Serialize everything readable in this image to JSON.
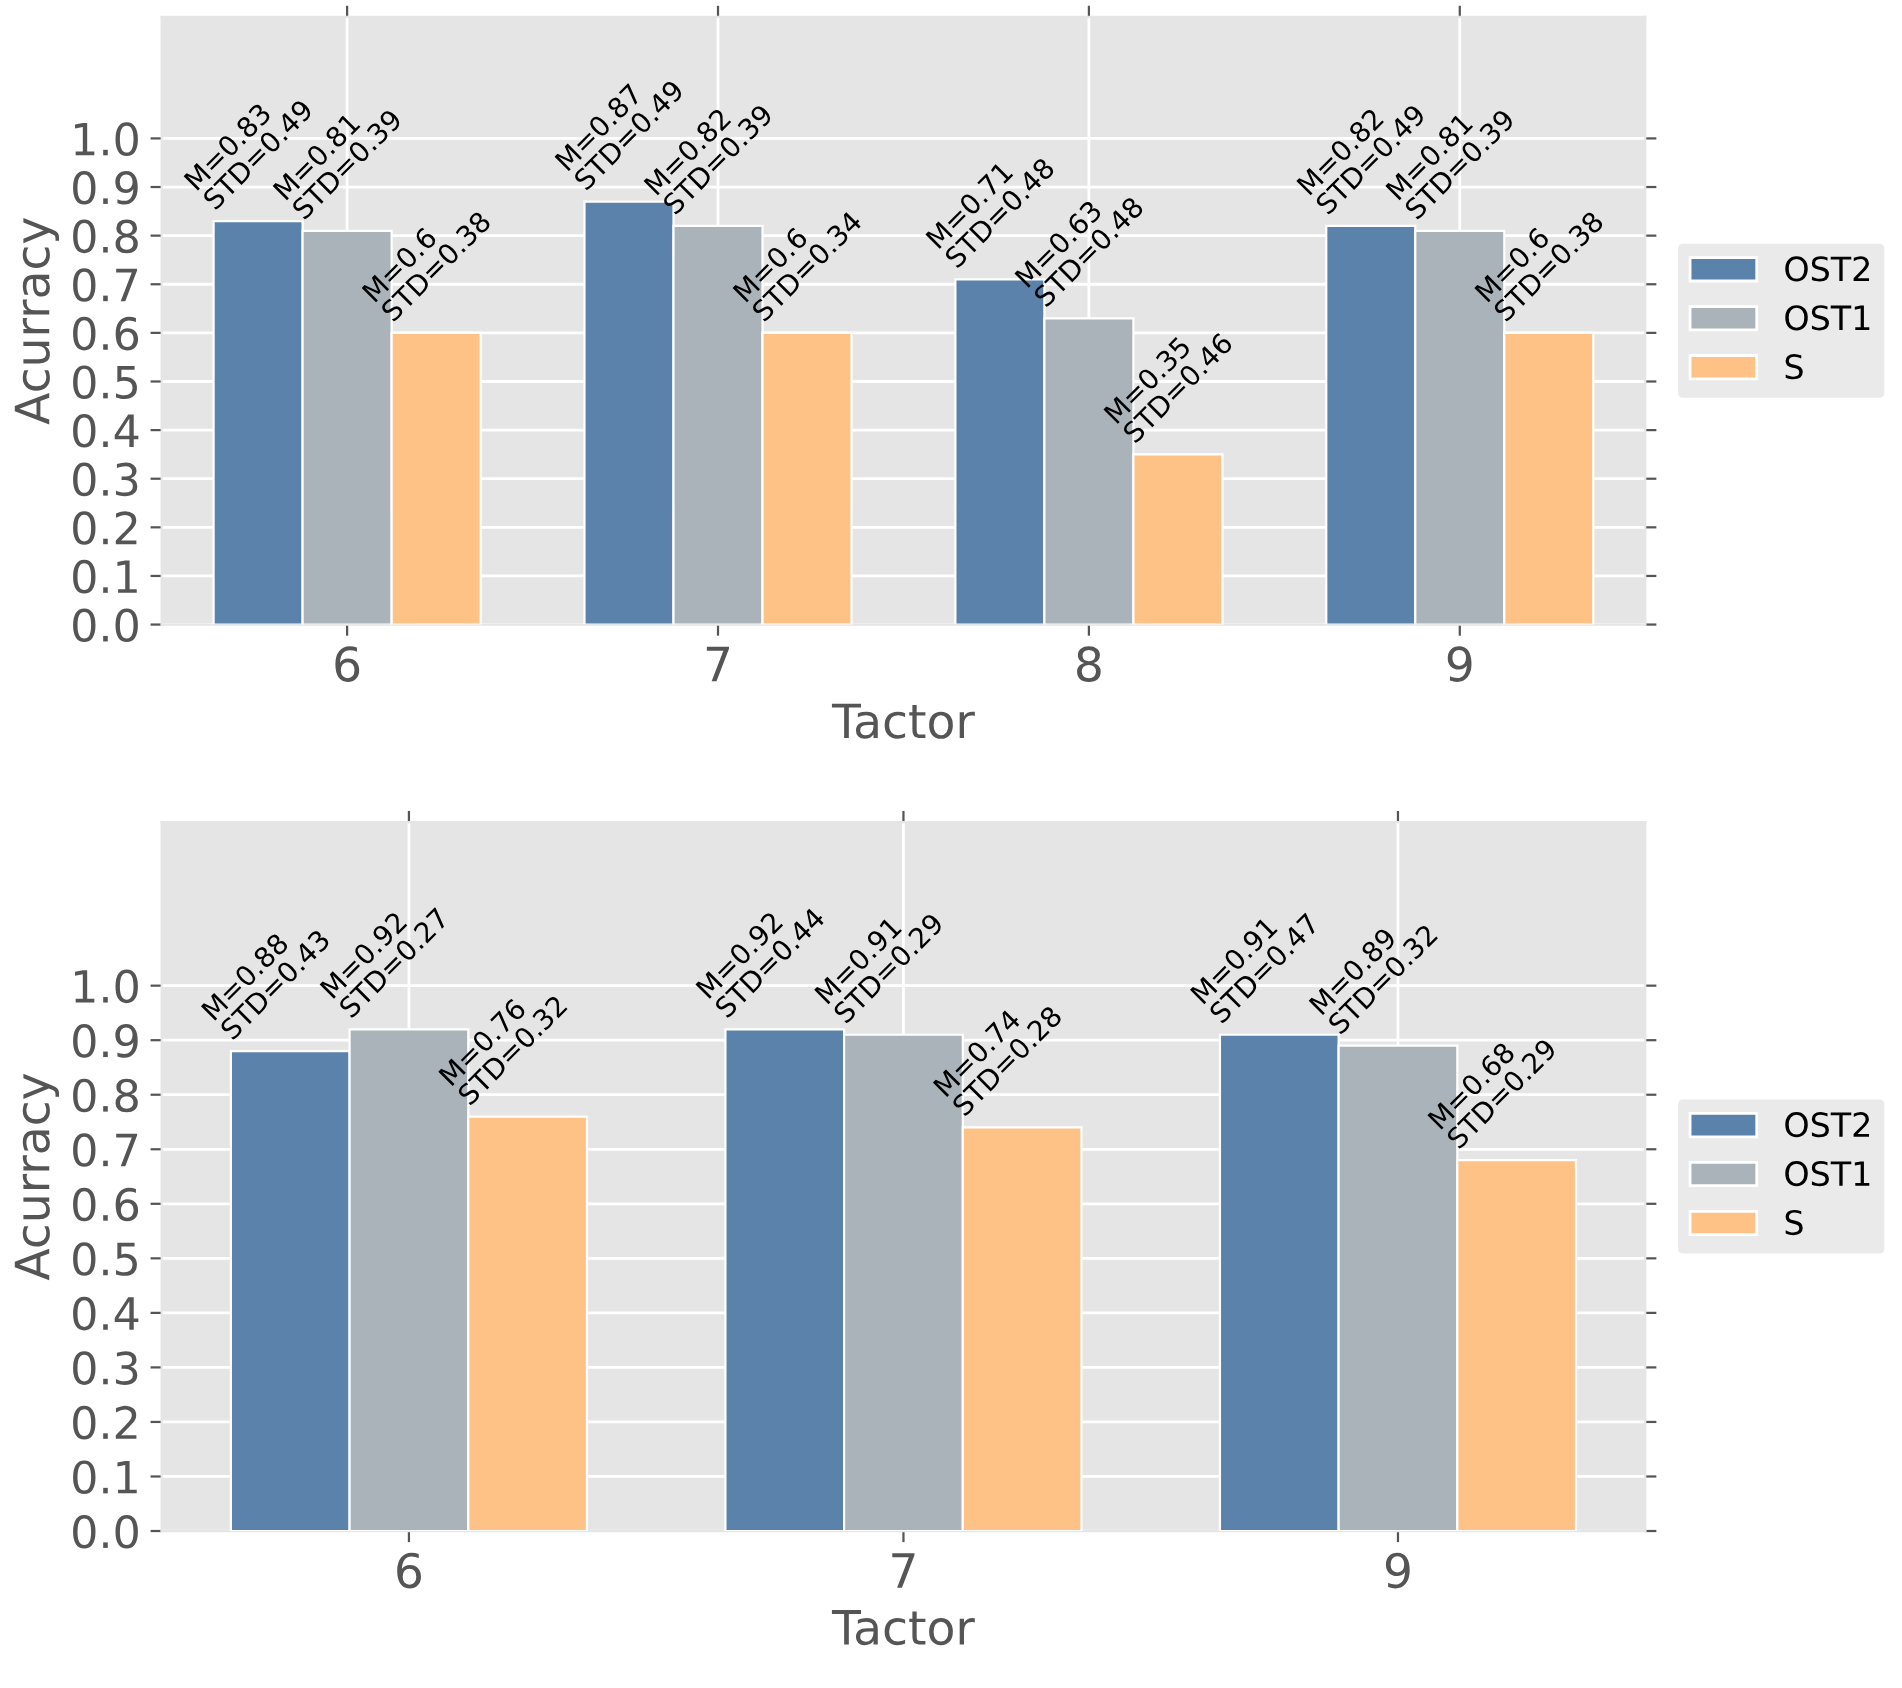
{
  "chart_data": [
    {
      "type": "bar",
      "xlabel": "Tactor",
      "ylabel": "Acurracy",
      "categories": [
        "6",
        "7",
        "8",
        "9"
      ],
      "ylim": [
        0,
        1.25
      ],
      "yticks": [
        {
          "value": 0,
          "label": "0.0"
        },
        {
          "value": 0.1,
          "label": "0.1"
        },
        {
          "value": 0.2,
          "label": "0.2"
        },
        {
          "value": 0.3,
          "label": "0.3"
        },
        {
          "value": 0.4,
          "label": "0.4"
        },
        {
          "value": 0.5,
          "label": "0.5"
        },
        {
          "value": 0.6,
          "label": "0.6"
        },
        {
          "value": 0.7,
          "label": "0.7"
        },
        {
          "value": 0.8,
          "label": "0.8"
        },
        {
          "value": 0.9,
          "label": "0.9"
        },
        {
          "value": 1.0,
          "label": "1.0"
        }
      ],
      "grid": true,
      "legend": "right",
      "series": [
        {
          "name": "OST2",
          "color": "#5a82ab",
          "values": [
            0.83,
            0.87,
            0.71,
            0.82
          ],
          "value_labels": [
            "M=0.83\nSTD=0.49",
            "M=0.87\nSTD=0.49",
            "M=0.71\nSTD=0.48",
            "M=0.82\nSTD=0.49"
          ]
        },
        {
          "name": "OST1",
          "color": "#a9b3b9",
          "values": [
            0.81,
            0.82,
            0.63,
            0.81
          ],
          "value_labels": [
            "M=0.81\nSTD=0.39",
            "M=0.82\nSTD=0.39",
            "M=0.63\nSTD=0.48",
            "M=0.81\nSTD=0.39"
          ]
        },
        {
          "name": "S",
          "color": "#fec287",
          "values": [
            0.6,
            0.6,
            0.35,
            0.6
          ],
          "value_labels": [
            "M=0.6\nSTD=0.38",
            "M=0.6\nSTD=0.34",
            "M=0.35\nSTD=0.46",
            "M=0.6\nSTD=0.38"
          ]
        }
      ]
    },
    {
      "type": "bar",
      "xlabel": "Tactor",
      "ylabel": "Acurracy",
      "categories": [
        "6",
        "7",
        "9"
      ],
      "ylim": [
        0,
        1.3
      ],
      "yticks": [
        {
          "value": 0,
          "label": "0.0"
        },
        {
          "value": 0.1,
          "label": "0.1"
        },
        {
          "value": 0.2,
          "label": "0.2"
        },
        {
          "value": 0.3,
          "label": "0.3"
        },
        {
          "value": 0.4,
          "label": "0.4"
        },
        {
          "value": 0.5,
          "label": "0.5"
        },
        {
          "value": 0.6,
          "label": "0.6"
        },
        {
          "value": 0.7,
          "label": "0.7"
        },
        {
          "value": 0.8,
          "label": "0.8"
        },
        {
          "value": 0.9,
          "label": "0.9"
        },
        {
          "value": 1.0,
          "label": "1.0"
        }
      ],
      "grid": true,
      "legend": "right",
      "series": [
        {
          "name": "OST2",
          "color": "#5a82ab",
          "values": [
            0.88,
            0.92,
            0.91
          ],
          "value_labels": [
            "M=0.88\nSTD=0.43",
            "M=0.92\nSTD=0.44",
            "M=0.91\nSTD=0.47"
          ]
        },
        {
          "name": "OST1",
          "color": "#a9b3b9",
          "values": [
            0.92,
            0.91,
            0.89
          ],
          "value_labels": [
            "M=0.92\nSTD=0.27",
            "M=0.91\nSTD=0.29",
            "M=0.89\nSTD=0.32"
          ]
        },
        {
          "name": "S",
          "color": "#fec287",
          "values": [
            0.76,
            0.74,
            0.68
          ],
          "value_labels": [
            "M=0.76\nSTD=0.32",
            "M=0.74\nSTD=0.28",
            "M=0.68\nSTD=0.29"
          ]
        }
      ]
    }
  ]
}
